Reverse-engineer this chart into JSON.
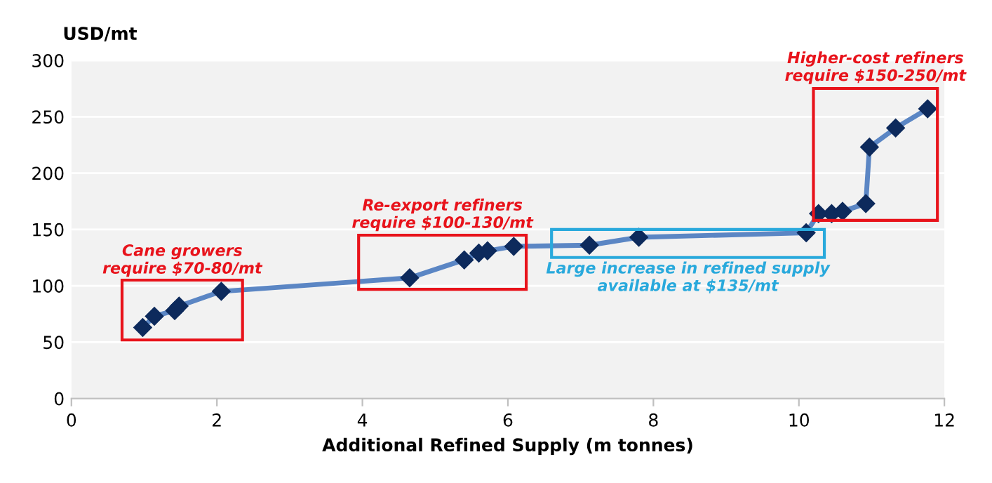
{
  "chart_data": {
    "type": "line",
    "xlabel": "Additional Refined Supply (m tonnes)",
    "ylabel": "USD/mt",
    "x": [
      0.98,
      1.14,
      1.42,
      1.48,
      2.06,
      4.65,
      5.4,
      5.6,
      5.72,
      6.08,
      7.12,
      7.8,
      10.1,
      10.27,
      10.45,
      10.6,
      10.92,
      10.97,
      11.33,
      11.77
    ],
    "series": [
      {
        "color": "#5b86c4",
        "values": [
          63,
          73,
          78,
          82,
          95,
          107,
          123,
          129,
          131,
          135,
          136,
          143,
          147,
          164,
          164,
          166,
          173,
          223,
          240,
          257
        ]
      }
    ],
    "marker": "diamond",
    "line_style": "solid",
    "xlim": [
      0,
      12
    ],
    "xticks": [
      0,
      2,
      4,
      6,
      8,
      10,
      12
    ],
    "ylim": [
      0,
      300
    ],
    "yticks": [
      0,
      50,
      100,
      150,
      200,
      250,
      300
    ],
    "grid": "y",
    "annotations": [
      "Cane growers\nrequire $70-80/mt",
      "Re-export refiners\nrequire $100-130/mt",
      "Large increase in refined supply\navailable at $135/mt",
      "Higher-cost refiners\nrequire $150-250/mt"
    ]
  }
}
